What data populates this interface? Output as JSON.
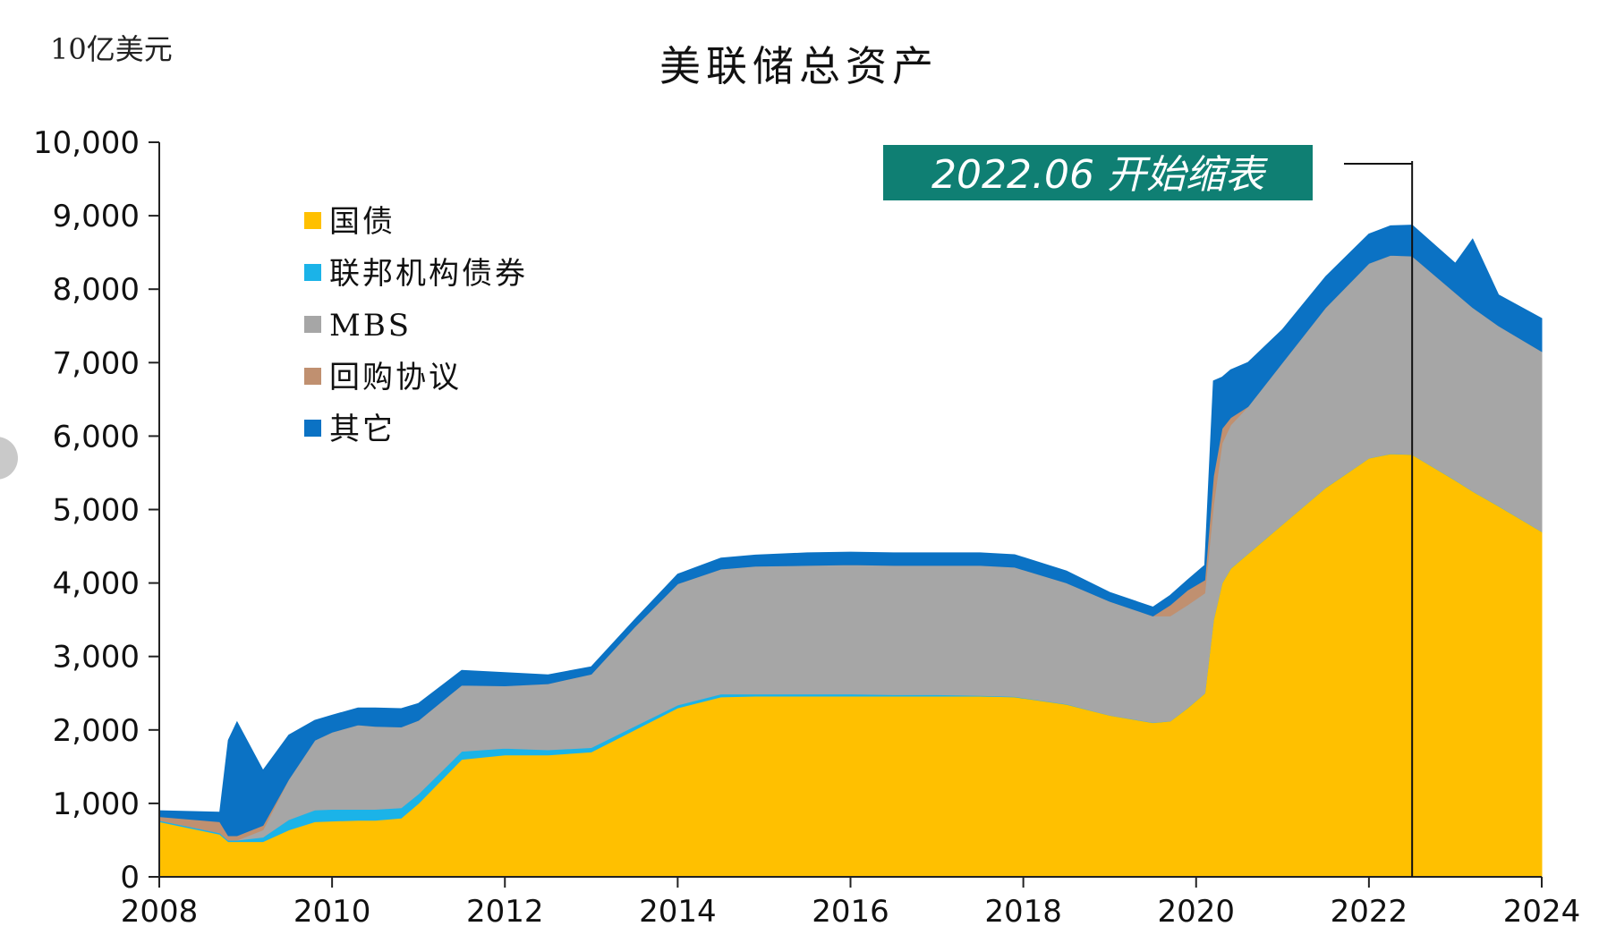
{
  "colors": {
    "treasury": "#FFC000",
    "agency": "#1BB3E8",
    "mbs": "#A6A6A6",
    "repo": "#C09070",
    "other": "#0B72C4",
    "annotation_bg": "#0F7F73"
  },
  "chart_data": {
    "type": "area",
    "stacked": true,
    "title": "美联储总资产",
    "ylabel": "10亿美元",
    "xlabel": "",
    "xlim": [
      2008,
      2024
    ],
    "ylim": [
      0,
      10000
    ],
    "x_ticks": [
      "2008",
      "2010",
      "2012",
      "2014",
      "2016",
      "2018",
      "2020",
      "2022",
      "2024"
    ],
    "y_ticks": [
      "0",
      "1,000",
      "2,000",
      "3,000",
      "4,000",
      "5,000",
      "6,000",
      "7,000",
      "8,000",
      "9,000",
      "10,000"
    ],
    "grid": false,
    "legend_position": "top-left",
    "annotation": {
      "text": "2022.06 开始缩表",
      "x": 2022.5
    },
    "x": [
      2008.0,
      2008.7,
      2008.8,
      2008.9,
      2009.2,
      2009.5,
      2009.8,
      2010.0,
      2010.3,
      2010.5,
      2010.8,
      2011.0,
      2011.5,
      2012.0,
      2012.5,
      2013.0,
      2013.5,
      2014.0,
      2014.5,
      2014.9,
      2015.5,
      2016.0,
      2016.5,
      2017.0,
      2017.5,
      2017.9,
      2018.5,
      2019.0,
      2019.5,
      2019.7,
      2019.9,
      2020.1,
      2020.2,
      2020.3,
      2020.4,
      2020.6,
      2021.0,
      2021.5,
      2022.0,
      2022.25,
      2022.5,
      2023.0,
      2023.2,
      2023.5,
      2024.0
    ],
    "series": [
      {
        "name": "国债",
        "values": [
          750,
          580,
          480,
          480,
          480,
          640,
          750,
          760,
          770,
          770,
          800,
          1000,
          1600,
          1660,
          1660,
          1700,
          2000,
          2300,
          2450,
          2460,
          2460,
          2460,
          2460,
          2460,
          2460,
          2450,
          2350,
          2200,
          2100,
          2120,
          2300,
          2500,
          3500,
          4000,
          4200,
          4400,
          4800,
          5300,
          5700,
          5760,
          5750,
          5400,
          5250,
          5050,
          4700
        ]
      },
      {
        "name": "联邦机构债券",
        "values": [
          20,
          20,
          20,
          20,
          60,
          140,
          160,
          160,
          150,
          150,
          140,
          130,
          110,
          90,
          70,
          60,
          50,
          40,
          40,
          30,
          30,
          30,
          20,
          20,
          10,
          5,
          3,
          2,
          2,
          2,
          2,
          2,
          2,
          2,
          2,
          2,
          2,
          2,
          2,
          2,
          2,
          2,
          2,
          2,
          2
        ]
      },
      {
        "name": "MBS",
        "values": [
          0,
          0,
          0,
          0,
          100,
          550,
          950,
          1050,
          1150,
          1130,
          1100,
          1000,
          900,
          850,
          900,
          1000,
          1350,
          1650,
          1700,
          1740,
          1750,
          1760,
          1760,
          1760,
          1770,
          1760,
          1650,
          1550,
          1450,
          1430,
          1400,
          1360,
          1550,
          1900,
          1950,
          2000,
          2200,
          2450,
          2650,
          2700,
          2700,
          2550,
          2500,
          2450,
          2450
        ]
      },
      {
        "name": "回购协议",
        "values": [
          50,
          150,
          60,
          60,
          60,
          0,
          0,
          0,
          0,
          0,
          0,
          0,
          0,
          0,
          0,
          0,
          0,
          0,
          0,
          0,
          0,
          0,
          0,
          0,
          0,
          0,
          0,
          0,
          0,
          150,
          200,
          180,
          400,
          200,
          100,
          0,
          0,
          0,
          0,
          0,
          0,
          0,
          0,
          0,
          0
        ]
      },
      {
        "name": "其它",
        "values": [
          80,
          130,
          1300,
          1550,
          750,
          600,
          270,
          230,
          230,
          250,
          250,
          230,
          200,
          180,
          120,
          100,
          100,
          130,
          150,
          150,
          170,
          170,
          170,
          170,
          170,
          170,
          160,
          120,
          120,
          130,
          140,
          200,
          1300,
          700,
          650,
          600,
          450,
          420,
          400,
          400,
          420,
          400,
          930,
          420,
          450
        ]
      }
    ]
  }
}
